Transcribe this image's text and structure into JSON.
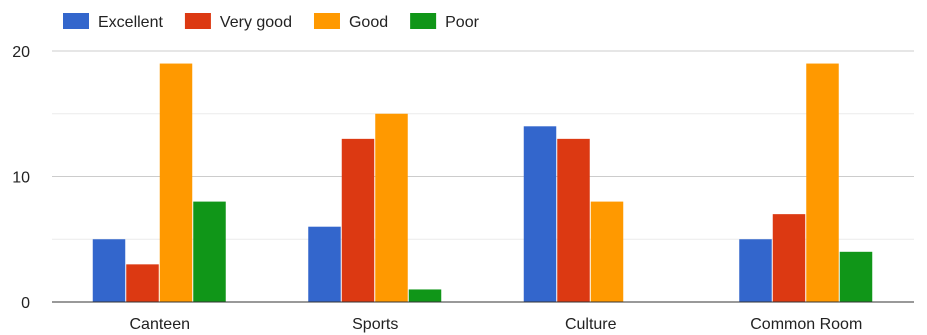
{
  "chart_data": {
    "type": "bar",
    "categories": [
      "Canteen",
      "Sports",
      "Culture",
      "Common Room"
    ],
    "series": [
      {
        "name": "Excellent",
        "color": "#3366cc",
        "values": [
          5,
          6,
          14,
          5
        ]
      },
      {
        "name": "Very good",
        "color": "#dc3912",
        "values": [
          3,
          13,
          13,
          7
        ]
      },
      {
        "name": "Good",
        "color": "#ff9900",
        "values": [
          19,
          15,
          8,
          19
        ]
      },
      {
        "name": "Poor",
        "color": "#109618",
        "values": [
          8,
          1,
          0,
          4
        ]
      }
    ],
    "ylim": [
      0,
      20
    ],
    "yticks": [
      "0",
      "10",
      "20"
    ],
    "grid": true,
    "legend_position": "top-left"
  }
}
